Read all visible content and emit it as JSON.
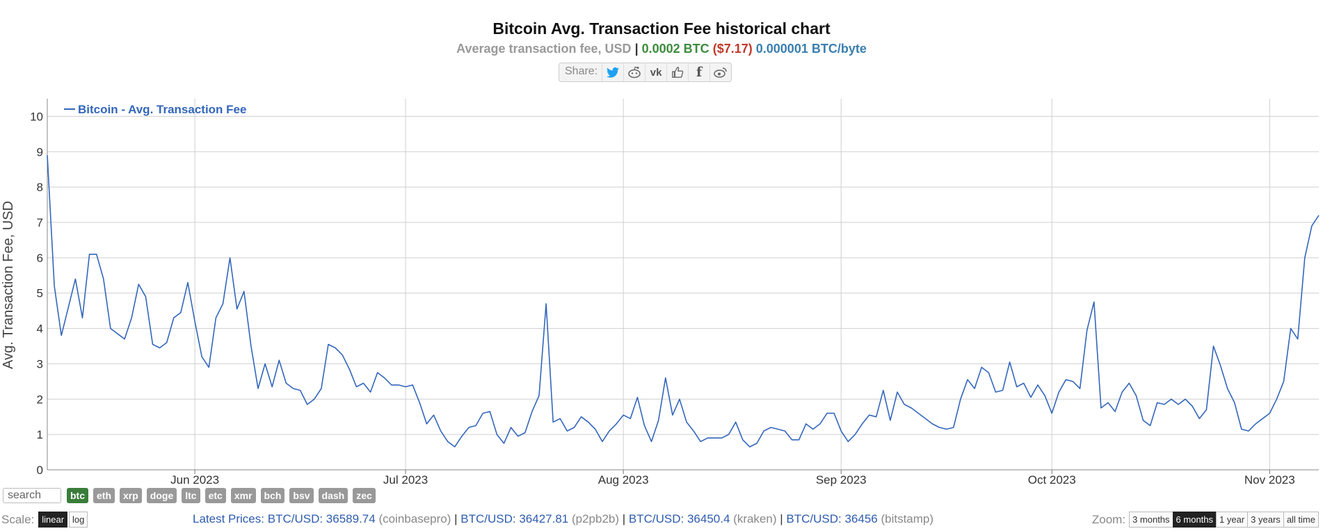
{
  "header": {
    "title": "Bitcoin Avg. Transaction Fee historical chart",
    "subtitle_label": "Average transaction fee, USD",
    "subtitle_btc": "0.0002 BTC",
    "subtitle_usd": "($7.17)",
    "subtitle_byte": "0.000001 BTC/byte"
  },
  "share": {
    "label": "Share:",
    "buttons": [
      "twitter-icon",
      "reddit-icon",
      "vk-icon",
      "like-icon",
      "facebook-icon",
      "weibo-icon"
    ]
  },
  "chart_data": {
    "type": "line",
    "ylabel": "Avg. Transaction Fee, USD",
    "ylim": [
      0,
      10.5
    ],
    "yticks": [
      0,
      1,
      2,
      3,
      4,
      5,
      6,
      7,
      8,
      9,
      10
    ],
    "xlim": [
      "2023-05-11",
      "2023-11-08"
    ],
    "xticks": [
      {
        "date": "2023-06-01",
        "label": "Jun 2023"
      },
      {
        "date": "2023-07-01",
        "label": "Jul 2023"
      },
      {
        "date": "2023-08-01",
        "label": "Aug 2023"
      },
      {
        "date": "2023-09-01",
        "label": "Sep 2023"
      },
      {
        "date": "2023-10-01",
        "label": "Oct 2023"
      },
      {
        "date": "2023-11-01",
        "label": "Nov 2023"
      }
    ],
    "grid": true,
    "legend": "top-left",
    "series": [
      {
        "name": "Bitcoin - Avg. Transaction Fee",
        "color": "#3366bb",
        "points": [
          [
            "2023-05-11",
            8.9
          ],
          [
            "2023-05-12",
            5.2
          ],
          [
            "2023-05-13",
            3.8
          ],
          [
            "2023-05-14",
            4.6
          ],
          [
            "2023-05-15",
            5.4
          ],
          [
            "2023-05-16",
            4.3
          ],
          [
            "2023-05-17",
            6.1
          ],
          [
            "2023-05-18",
            6.1
          ],
          [
            "2023-05-19",
            5.4
          ],
          [
            "2023-05-20",
            4.0
          ],
          [
            "2023-05-21",
            3.85
          ],
          [
            "2023-05-22",
            3.7
          ],
          [
            "2023-05-23",
            4.3
          ],
          [
            "2023-05-24",
            5.25
          ],
          [
            "2023-05-25",
            4.9
          ],
          [
            "2023-05-26",
            3.55
          ],
          [
            "2023-05-27",
            3.45
          ],
          [
            "2023-05-28",
            3.6
          ],
          [
            "2023-05-29",
            4.3
          ],
          [
            "2023-05-30",
            4.45
          ],
          [
            "2023-05-31",
            5.3
          ],
          [
            "2023-06-01",
            4.2
          ],
          [
            "2023-06-02",
            3.2
          ],
          [
            "2023-06-03",
            2.9
          ],
          [
            "2023-06-04",
            4.3
          ],
          [
            "2023-06-05",
            4.7
          ],
          [
            "2023-06-06",
            6.0
          ],
          [
            "2023-06-07",
            4.55
          ],
          [
            "2023-06-08",
            5.05
          ],
          [
            "2023-06-09",
            3.5
          ],
          [
            "2023-06-10",
            2.3
          ],
          [
            "2023-06-11",
            3.0
          ],
          [
            "2023-06-12",
            2.35
          ],
          [
            "2023-06-13",
            3.1
          ],
          [
            "2023-06-14",
            2.45
          ],
          [
            "2023-06-15",
            2.3
          ],
          [
            "2023-06-16",
            2.25
          ],
          [
            "2023-06-17",
            1.85
          ],
          [
            "2023-06-18",
            2.0
          ],
          [
            "2023-06-19",
            2.3
          ],
          [
            "2023-06-20",
            3.55
          ],
          [
            "2023-06-21",
            3.45
          ],
          [
            "2023-06-22",
            3.25
          ],
          [
            "2023-06-23",
            2.85
          ],
          [
            "2023-06-24",
            2.35
          ],
          [
            "2023-06-25",
            2.45
          ],
          [
            "2023-06-26",
            2.2
          ],
          [
            "2023-06-27",
            2.75
          ],
          [
            "2023-06-28",
            2.6
          ],
          [
            "2023-06-29",
            2.4
          ],
          [
            "2023-06-30",
            2.4
          ],
          [
            "2023-07-01",
            2.35
          ],
          [
            "2023-07-02",
            2.4
          ],
          [
            "2023-07-03",
            1.9
          ],
          [
            "2023-07-04",
            1.3
          ],
          [
            "2023-07-05",
            1.55
          ],
          [
            "2023-07-06",
            1.1
          ],
          [
            "2023-07-07",
            0.8
          ],
          [
            "2023-07-08",
            0.65
          ],
          [
            "2023-07-09",
            0.95
          ],
          [
            "2023-07-10",
            1.2
          ],
          [
            "2023-07-11",
            1.25
          ],
          [
            "2023-07-12",
            1.6
          ],
          [
            "2023-07-13",
            1.65
          ],
          [
            "2023-07-14",
            1.0
          ],
          [
            "2023-07-15",
            0.75
          ],
          [
            "2023-07-16",
            1.2
          ],
          [
            "2023-07-17",
            0.95
          ],
          [
            "2023-07-18",
            1.05
          ],
          [
            "2023-07-19",
            1.65
          ],
          [
            "2023-07-20",
            2.1
          ],
          [
            "2023-07-21",
            4.7
          ],
          [
            "2023-07-22",
            1.35
          ],
          [
            "2023-07-23",
            1.45
          ],
          [
            "2023-07-24",
            1.1
          ],
          [
            "2023-07-25",
            1.2
          ],
          [
            "2023-07-26",
            1.5
          ],
          [
            "2023-07-27",
            1.35
          ],
          [
            "2023-07-28",
            1.15
          ],
          [
            "2023-07-29",
            0.8
          ],
          [
            "2023-07-30",
            1.1
          ],
          [
            "2023-07-31",
            1.3
          ],
          [
            "2023-08-01",
            1.55
          ],
          [
            "2023-08-02",
            1.45
          ],
          [
            "2023-08-03",
            2.05
          ],
          [
            "2023-08-04",
            1.25
          ],
          [
            "2023-08-05",
            0.8
          ],
          [
            "2023-08-06",
            1.4
          ],
          [
            "2023-08-07",
            2.6
          ],
          [
            "2023-08-08",
            1.55
          ],
          [
            "2023-08-09",
            2.0
          ],
          [
            "2023-08-10",
            1.35
          ],
          [
            "2023-08-11",
            1.1
          ],
          [
            "2023-08-12",
            0.8
          ],
          [
            "2023-08-13",
            0.9
          ],
          [
            "2023-08-14",
            0.9
          ],
          [
            "2023-08-15",
            0.9
          ],
          [
            "2023-08-16",
            1.0
          ],
          [
            "2023-08-17",
            1.35
          ],
          [
            "2023-08-18",
            0.85
          ],
          [
            "2023-08-19",
            0.65
          ],
          [
            "2023-08-20",
            0.75
          ],
          [
            "2023-08-21",
            1.1
          ],
          [
            "2023-08-22",
            1.2
          ],
          [
            "2023-08-23",
            1.15
          ],
          [
            "2023-08-24",
            1.1
          ],
          [
            "2023-08-25",
            0.85
          ],
          [
            "2023-08-26",
            0.85
          ],
          [
            "2023-08-27",
            1.3
          ],
          [
            "2023-08-28",
            1.15
          ],
          [
            "2023-08-29",
            1.3
          ],
          [
            "2023-08-30",
            1.6
          ],
          [
            "2023-08-31",
            1.6
          ],
          [
            "2023-09-01",
            1.1
          ],
          [
            "2023-09-02",
            0.8
          ],
          [
            "2023-09-03",
            1.0
          ],
          [
            "2023-09-04",
            1.3
          ],
          [
            "2023-09-05",
            1.55
          ],
          [
            "2023-09-06",
            1.5
          ],
          [
            "2023-09-07",
            2.25
          ],
          [
            "2023-09-08",
            1.4
          ],
          [
            "2023-09-09",
            2.2
          ],
          [
            "2023-09-10",
            1.85
          ],
          [
            "2023-09-11",
            1.75
          ],
          [
            "2023-09-12",
            1.6
          ],
          [
            "2023-09-13",
            1.45
          ],
          [
            "2023-09-14",
            1.3
          ],
          [
            "2023-09-15",
            1.2
          ],
          [
            "2023-09-16",
            1.15
          ],
          [
            "2023-09-17",
            1.2
          ],
          [
            "2023-09-18",
            2.0
          ],
          [
            "2023-09-19",
            2.55
          ],
          [
            "2023-09-20",
            2.3
          ],
          [
            "2023-09-21",
            2.9
          ],
          [
            "2023-09-22",
            2.75
          ],
          [
            "2023-09-23",
            2.2
          ],
          [
            "2023-09-24",
            2.25
          ],
          [
            "2023-09-25",
            3.05
          ],
          [
            "2023-09-26",
            2.35
          ],
          [
            "2023-09-27",
            2.45
          ],
          [
            "2023-09-28",
            2.05
          ],
          [
            "2023-09-29",
            2.4
          ],
          [
            "2023-09-30",
            2.1
          ],
          [
            "2023-10-01",
            1.6
          ],
          [
            "2023-10-02",
            2.2
          ],
          [
            "2023-10-03",
            2.55
          ],
          [
            "2023-10-04",
            2.5
          ],
          [
            "2023-10-05",
            2.3
          ],
          [
            "2023-10-06",
            3.95
          ],
          [
            "2023-10-07",
            4.75
          ],
          [
            "2023-10-08",
            1.75
          ],
          [
            "2023-10-09",
            1.9
          ],
          [
            "2023-10-10",
            1.65
          ],
          [
            "2023-10-11",
            2.2
          ],
          [
            "2023-10-12",
            2.45
          ],
          [
            "2023-10-13",
            2.1
          ],
          [
            "2023-10-14",
            1.4
          ],
          [
            "2023-10-15",
            1.25
          ],
          [
            "2023-10-16",
            1.9
          ],
          [
            "2023-10-17",
            1.85
          ],
          [
            "2023-10-18",
            2.0
          ],
          [
            "2023-10-19",
            1.85
          ],
          [
            "2023-10-20",
            2.0
          ],
          [
            "2023-10-21",
            1.8
          ],
          [
            "2023-10-22",
            1.45
          ],
          [
            "2023-10-23",
            1.7
          ],
          [
            "2023-10-24",
            3.5
          ],
          [
            "2023-10-25",
            2.95
          ],
          [
            "2023-10-26",
            2.3
          ],
          [
            "2023-10-27",
            1.9
          ],
          [
            "2023-10-28",
            1.15
          ],
          [
            "2023-10-29",
            1.1
          ],
          [
            "2023-10-30",
            1.3
          ],
          [
            "2023-10-31",
            1.45
          ],
          [
            "2023-11-01",
            1.6
          ],
          [
            "2023-11-02",
            2.0
          ],
          [
            "2023-11-03",
            2.5
          ],
          [
            "2023-11-04",
            4.0
          ],
          [
            "2023-11-05",
            3.7
          ],
          [
            "2023-11-06",
            6.0
          ],
          [
            "2023-11-07",
            6.9
          ],
          [
            "2023-11-08",
            7.2
          ]
        ]
      }
    ]
  },
  "coins": {
    "search_placeholder": "search",
    "items": [
      "btc",
      "eth",
      "xrp",
      "doge",
      "ltc",
      "etc",
      "xmr",
      "bch",
      "bsv",
      "dash",
      "zec"
    ],
    "active": "btc"
  },
  "scale": {
    "label": "Scale:",
    "options": [
      "linear",
      "log"
    ],
    "active": "linear"
  },
  "prices": {
    "label": "Latest Prices:",
    "items": [
      {
        "pair": "BTC/USD: 36589.74",
        "source": "(coinbasepro)"
      },
      {
        "pair": "BTC/USD: 36427.81",
        "source": "(p2pb2b)"
      },
      {
        "pair": "BTC/USD: 36450.4",
        "source": "(kraken)"
      },
      {
        "pair": "BTC/USD: 36456",
        "source": "(bitstamp)"
      }
    ]
  },
  "zoom": {
    "label": "Zoom:",
    "options": [
      "3 months",
      "6 months",
      "1 year",
      "3 years",
      "all time"
    ],
    "active": "6 months"
  }
}
